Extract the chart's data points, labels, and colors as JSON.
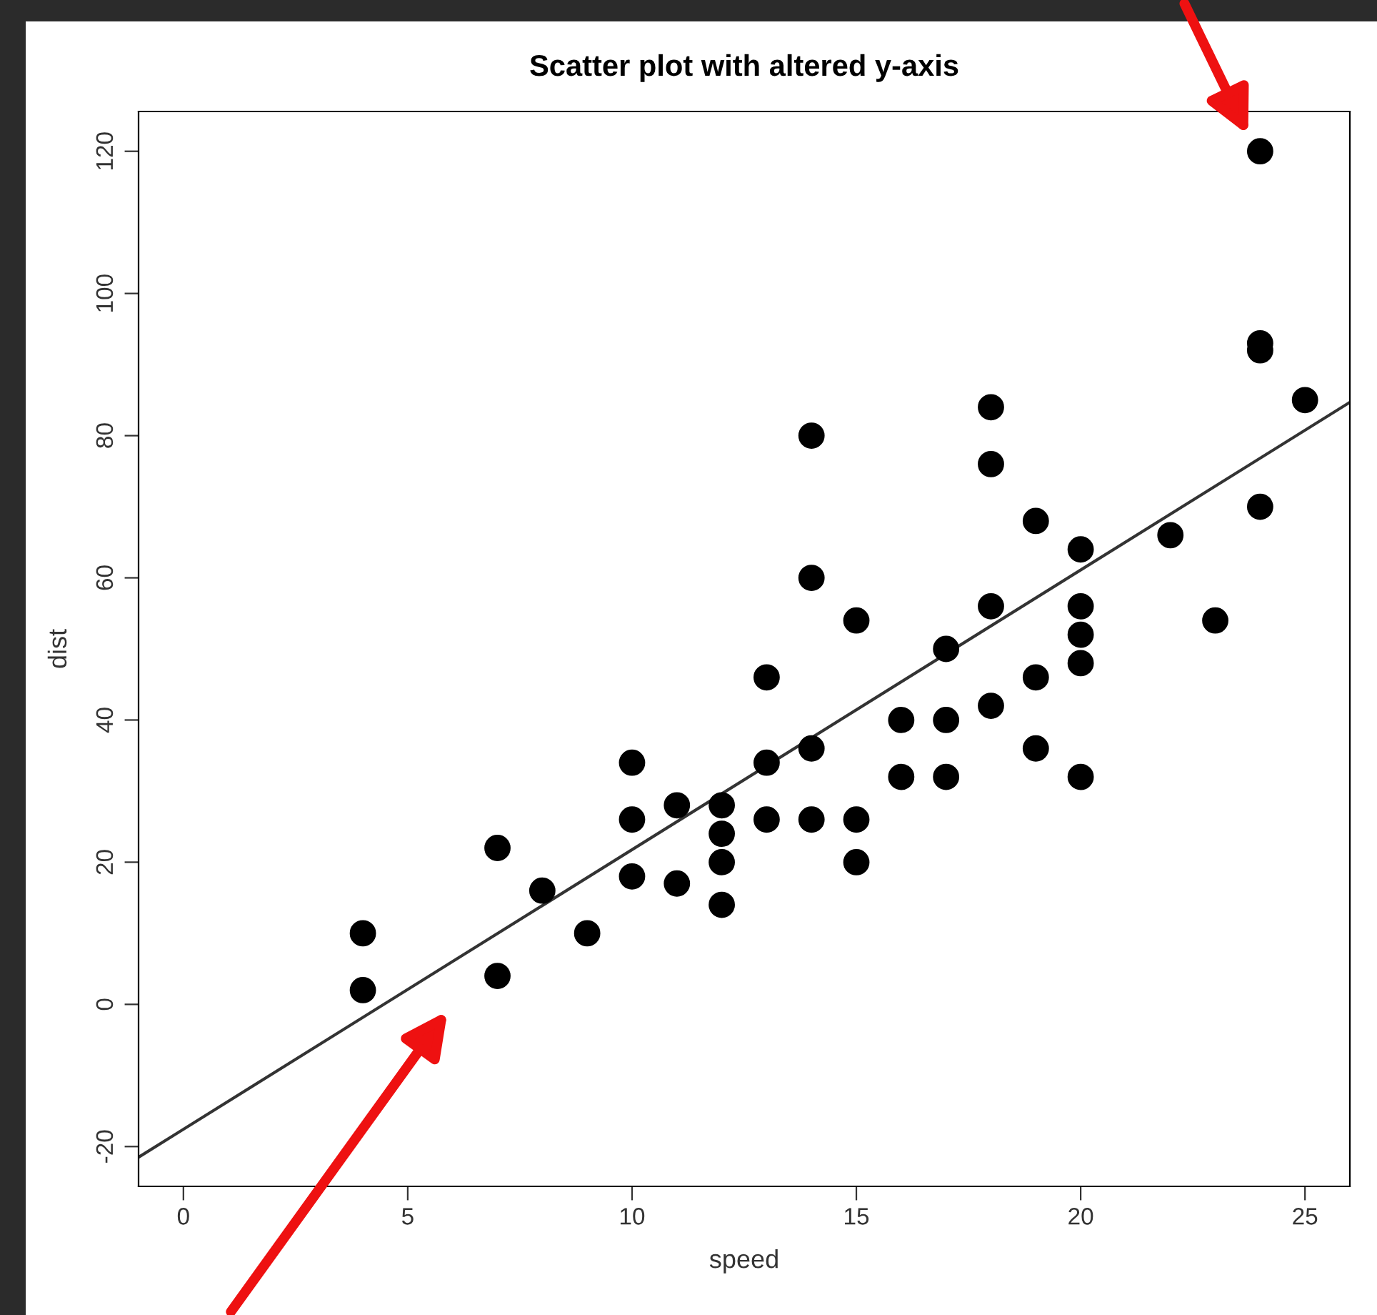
{
  "chart_data": {
    "type": "scatter",
    "title": "Scatter plot with altered y-axis",
    "xlabel": "speed",
    "ylabel": "dist",
    "series": [
      {
        "color": "#000000",
        "marker": "circle",
        "x": [
          4,
          4,
          7,
          7,
          8,
          9,
          10,
          10,
          10,
          11,
          11,
          12,
          12,
          12,
          12,
          13,
          13,
          13,
          14,
          14,
          14,
          14,
          15,
          15,
          15,
          16,
          16,
          17,
          17,
          17,
          18,
          18,
          18,
          18,
          19,
          19,
          19,
          20,
          20,
          20,
          20,
          20,
          22,
          23,
          24,
          24,
          24,
          24,
          25
        ],
        "values": [
          2,
          10,
          4,
          22,
          16,
          10,
          18,
          26,
          34,
          17,
          28,
          14,
          20,
          24,
          28,
          26,
          34,
          46,
          26,
          36,
          60,
          80,
          20,
          26,
          54,
          32,
          40,
          32,
          40,
          50,
          42,
          56,
          76,
          84,
          36,
          46,
          68,
          32,
          48,
          52,
          56,
          64,
          66,
          54,
          70,
          92,
          93,
          120,
          85
        ]
      },
      {
        "type": "line",
        "marker": "none",
        "line_style": "solid",
        "color": "#333333",
        "x": [
          -1,
          26
        ],
        "values": [
          -21.5,
          84.7
        ]
      }
    ],
    "xlim": [
      -1,
      26
    ],
    "ylim": [
      -25.6,
      125.6
    ],
    "xticks": [
      0,
      5,
      10,
      15,
      20,
      25
    ],
    "yticks": [
      -20,
      0,
      20,
      40,
      60,
      80,
      100,
      120
    ],
    "grid": false,
    "legend": false
  }
}
